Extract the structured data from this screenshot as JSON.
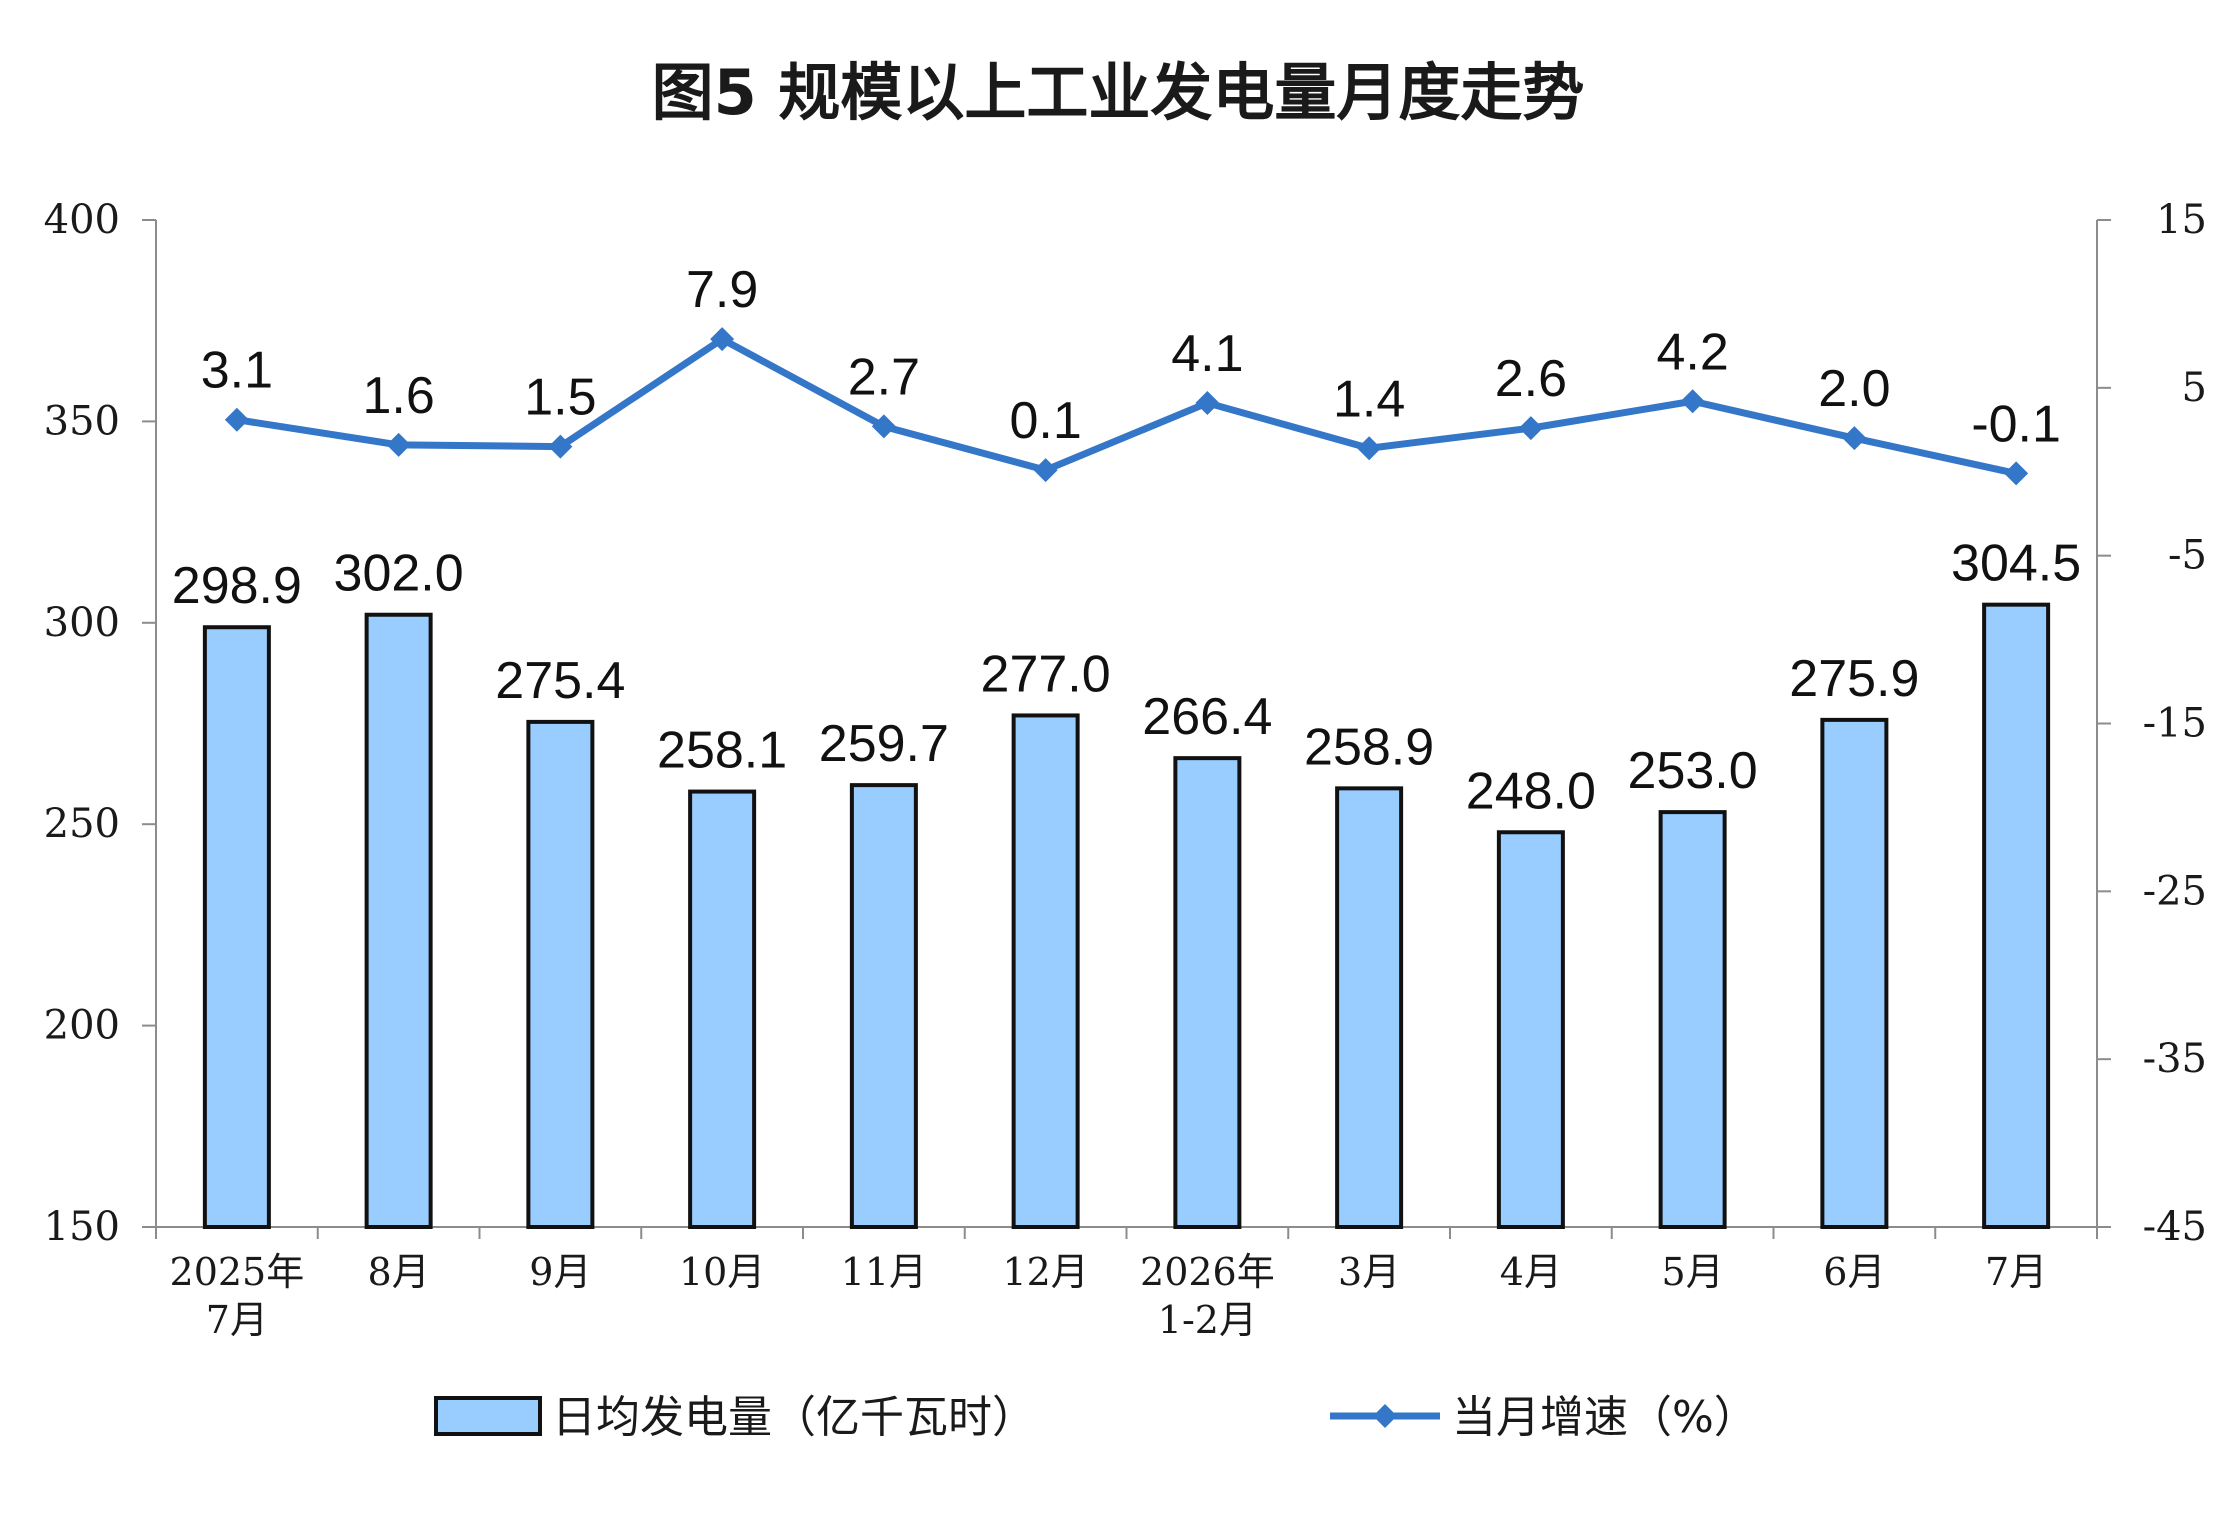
{
  "chart_data": {
    "type": "bar+line",
    "title": "图5  规模以上工业发电量月度走势",
    "categories": [
      [
        "2025年",
        "7月"
      ],
      [
        "8月"
      ],
      [
        "9月"
      ],
      [
        "10月"
      ],
      [
        "11月"
      ],
      [
        "12月"
      ],
      [
        "2026年",
        "1-2月"
      ],
      [
        "3月"
      ],
      [
        "4月"
      ],
      [
        "5月"
      ],
      [
        "6月"
      ],
      [
        "7月"
      ]
    ],
    "series": [
      {
        "name": "日均发电量（亿千瓦时）",
        "type": "bar",
        "axis": "left",
        "color": "#99ccff",
        "values": [
          298.9,
          302.0,
          275.4,
          258.1,
          259.7,
          277.0,
          266.4,
          258.9,
          248.0,
          253.0,
          275.9,
          304.5
        ],
        "labels": [
          "298.9",
          "302.0",
          "275.4",
          "258.1",
          "259.7",
          "277.0",
          "266.4",
          "258.9",
          "248.0",
          "253.0",
          "275.9",
          "304.5"
        ]
      },
      {
        "name": "当月增速（%）",
        "type": "line",
        "axis": "right",
        "color": "#3476c8",
        "values": [
          3.1,
          1.6,
          1.5,
          7.9,
          2.7,
          0.1,
          4.1,
          1.4,
          2.6,
          4.2,
          2.0,
          -0.1
        ],
        "labels": [
          "3.1",
          "1.6",
          "1.5",
          "7.9",
          "2.7",
          "0.1",
          "4.1",
          "1.4",
          "2.6",
          "4.2",
          "2.0",
          "-0.1"
        ]
      }
    ],
    "y_left": {
      "range": [
        150,
        400
      ],
      "ticks": [
        "150",
        "200",
        "250",
        "300",
        "350",
        "400"
      ]
    },
    "y_right": {
      "range": [
        -45,
        15
      ],
      "ticks": [
        "-45",
        "-35",
        "-25",
        "-15",
        "-5",
        "5",
        "15"
      ]
    },
    "legend": {
      "placement": "bottom"
    },
    "grid": false
  }
}
